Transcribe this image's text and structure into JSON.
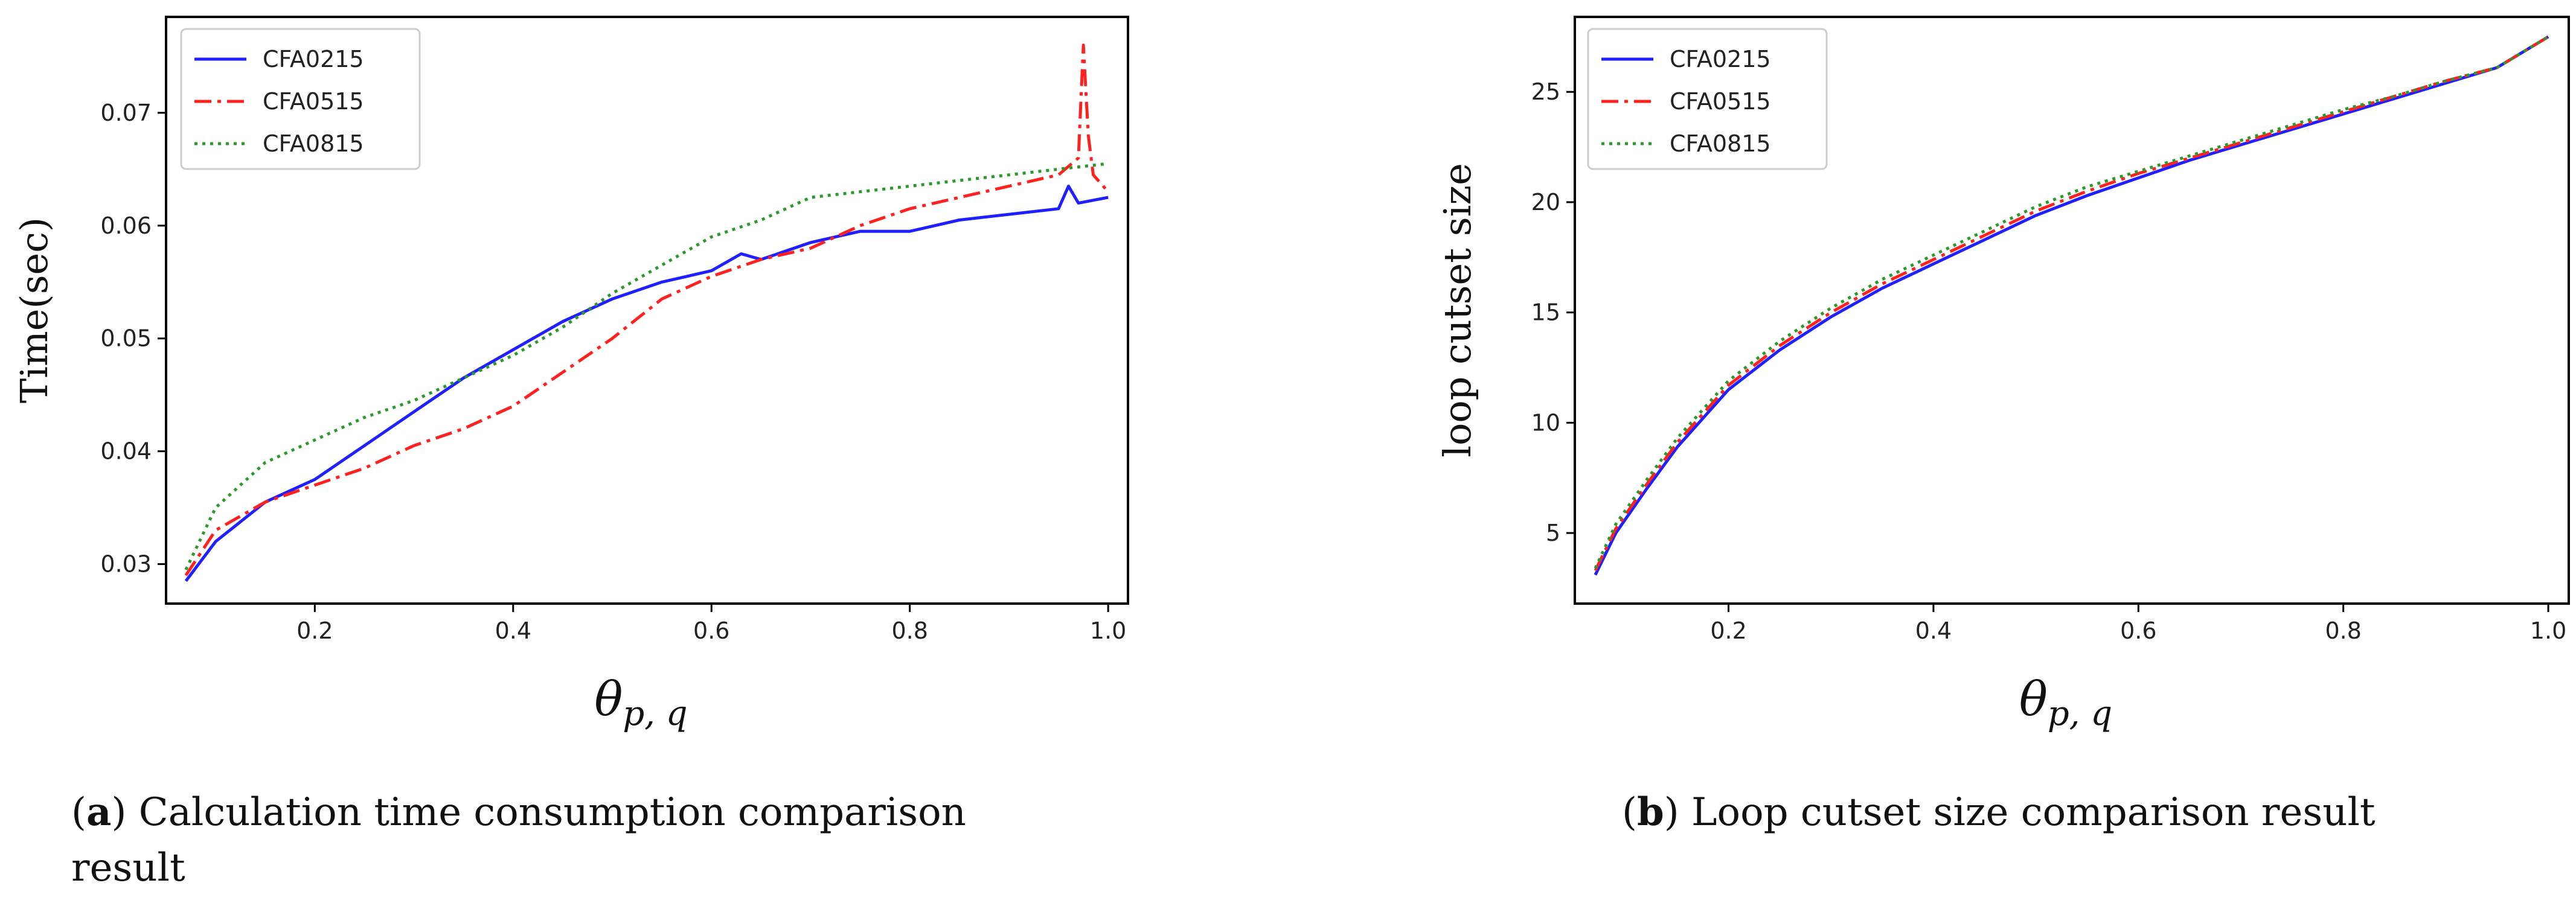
{
  "chart_data": [
    {
      "type": "line",
      "title": "",
      "xlabel": "θ",
      "xlabel_sub": "p, q",
      "ylabel": "Time(sec)",
      "xlim": [
        0.05,
        1.02
      ],
      "ylim": [
        0.0265,
        0.0785
      ],
      "xticks": [
        0.2,
        0.4,
        0.6,
        0.8,
        1.0
      ],
      "xtick_labels": [
        "0.2",
        "0.4",
        "0.6",
        "0.8",
        "1.0"
      ],
      "yticks": [
        0.03,
        0.04,
        0.05,
        0.06,
        0.07
      ],
      "ytick_labels": [
        "0.03",
        "0.04",
        "0.05",
        "0.06",
        "0.07"
      ],
      "legend": "top-left",
      "caption_label": "a",
      "caption_text": "Calculation time consumption comparison result",
      "caption_lines": [
        "Calculation time consumption comparison",
        "result"
      ],
      "series": [
        {
          "name": "CFA0215",
          "color": "#1f1fff",
          "dash": "solid",
          "x": [
            0.07,
            0.1,
            0.15,
            0.2,
            0.25,
            0.3,
            0.35,
            0.4,
            0.45,
            0.5,
            0.55,
            0.6,
            0.63,
            0.65,
            0.7,
            0.75,
            0.8,
            0.85,
            0.9,
            0.95,
            0.96,
            0.97,
            1.0
          ],
          "y": [
            0.0285,
            0.032,
            0.0355,
            0.0375,
            0.0405,
            0.0435,
            0.0465,
            0.049,
            0.0515,
            0.0535,
            0.055,
            0.056,
            0.0575,
            0.057,
            0.0585,
            0.0595,
            0.0595,
            0.0605,
            0.061,
            0.0615,
            0.0635,
            0.062,
            0.0625
          ]
        },
        {
          "name": "CFA0515",
          "color": "#ff2020",
          "dash": "dashdot",
          "x": [
            0.07,
            0.1,
            0.15,
            0.2,
            0.25,
            0.3,
            0.35,
            0.4,
            0.45,
            0.5,
            0.55,
            0.6,
            0.65,
            0.7,
            0.75,
            0.8,
            0.85,
            0.9,
            0.95,
            0.97,
            0.975,
            0.98,
            0.985,
            1.0
          ],
          "y": [
            0.029,
            0.033,
            0.0355,
            0.037,
            0.0385,
            0.0405,
            0.042,
            0.044,
            0.047,
            0.05,
            0.0535,
            0.0555,
            0.057,
            0.058,
            0.06,
            0.0615,
            0.0625,
            0.0635,
            0.0645,
            0.066,
            0.076,
            0.068,
            0.0645,
            0.063
          ]
        },
        {
          "name": "CFA0815",
          "color": "#2a9a2a",
          "dash": "dotted",
          "x": [
            0.07,
            0.1,
            0.15,
            0.2,
            0.25,
            0.3,
            0.35,
            0.4,
            0.45,
            0.5,
            0.55,
            0.6,
            0.65,
            0.7,
            0.75,
            0.8,
            0.85,
            0.9,
            0.95,
            1.0
          ],
          "y": [
            0.0295,
            0.035,
            0.039,
            0.041,
            0.043,
            0.0445,
            0.0465,
            0.0485,
            0.051,
            0.054,
            0.0565,
            0.059,
            0.0605,
            0.0625,
            0.063,
            0.0635,
            0.064,
            0.0645,
            0.065,
            0.0655
          ]
        }
      ]
    },
    {
      "type": "line",
      "title": "",
      "xlabel": "θ",
      "xlabel_sub": "p, q",
      "ylabel": "loop cutset size",
      "xlim": [
        0.05,
        1.02
      ],
      "ylim": [
        1.8,
        28.4
      ],
      "xticks": [
        0.2,
        0.4,
        0.6,
        0.8,
        1.0
      ],
      "xtick_labels": [
        "0.2",
        "0.4",
        "0.6",
        "0.8",
        "1.0"
      ],
      "yticks": [
        5,
        10,
        15,
        20,
        25
      ],
      "ytick_labels": [
        "5",
        "10",
        "15",
        "20",
        "25"
      ],
      "legend": "top-left",
      "caption_label": "b",
      "caption_text": "Loop cutset size comparison result",
      "caption_lines": [
        "Loop cutset size comparison result"
      ],
      "series": [
        {
          "name": "CFA0215",
          "color": "#1f1fff",
          "dash": "solid",
          "x": [
            0.07,
            0.09,
            0.12,
            0.15,
            0.2,
            0.25,
            0.3,
            0.35,
            0.4,
            0.45,
            0.5,
            0.55,
            0.6,
            0.65,
            0.7,
            0.75,
            0.8,
            0.85,
            0.9,
            0.95,
            1.0
          ],
          "y": [
            3.1,
            5.0,
            7.0,
            8.9,
            11.5,
            13.3,
            14.8,
            16.1,
            17.2,
            18.3,
            19.4,
            20.3,
            21.1,
            21.9,
            22.6,
            23.3,
            24.0,
            24.7,
            25.4,
            26.1,
            27.5
          ]
        },
        {
          "name": "CFA0515",
          "color": "#ff2020",
          "dash": "dashdot",
          "x": [
            0.07,
            0.09,
            0.12,
            0.15,
            0.2,
            0.25,
            0.3,
            0.35,
            0.4,
            0.45,
            0.5,
            0.55,
            0.6,
            0.65,
            0.7,
            0.75,
            0.8,
            0.85,
            0.9,
            0.95,
            1.0
          ],
          "y": [
            3.3,
            5.2,
            7.2,
            9.1,
            11.7,
            13.5,
            15.0,
            16.3,
            17.4,
            18.5,
            19.6,
            20.5,
            21.3,
            22.0,
            22.7,
            23.4,
            24.1,
            24.8,
            25.5,
            26.1,
            27.5
          ]
        },
        {
          "name": "CFA0815",
          "color": "#2a9a2a",
          "dash": "dotted",
          "x": [
            0.07,
            0.09,
            0.12,
            0.15,
            0.2,
            0.25,
            0.3,
            0.35,
            0.4,
            0.45,
            0.5,
            0.55,
            0.6,
            0.65,
            0.7,
            0.75,
            0.8,
            0.85,
            0.9,
            0.95,
            1.0
          ],
          "y": [
            3.4,
            5.4,
            7.4,
            9.3,
            11.9,
            13.7,
            15.2,
            16.5,
            17.6,
            18.7,
            19.8,
            20.7,
            21.4,
            22.1,
            22.8,
            23.5,
            24.2,
            24.8,
            25.5,
            26.1,
            27.5
          ]
        }
      ]
    }
  ]
}
